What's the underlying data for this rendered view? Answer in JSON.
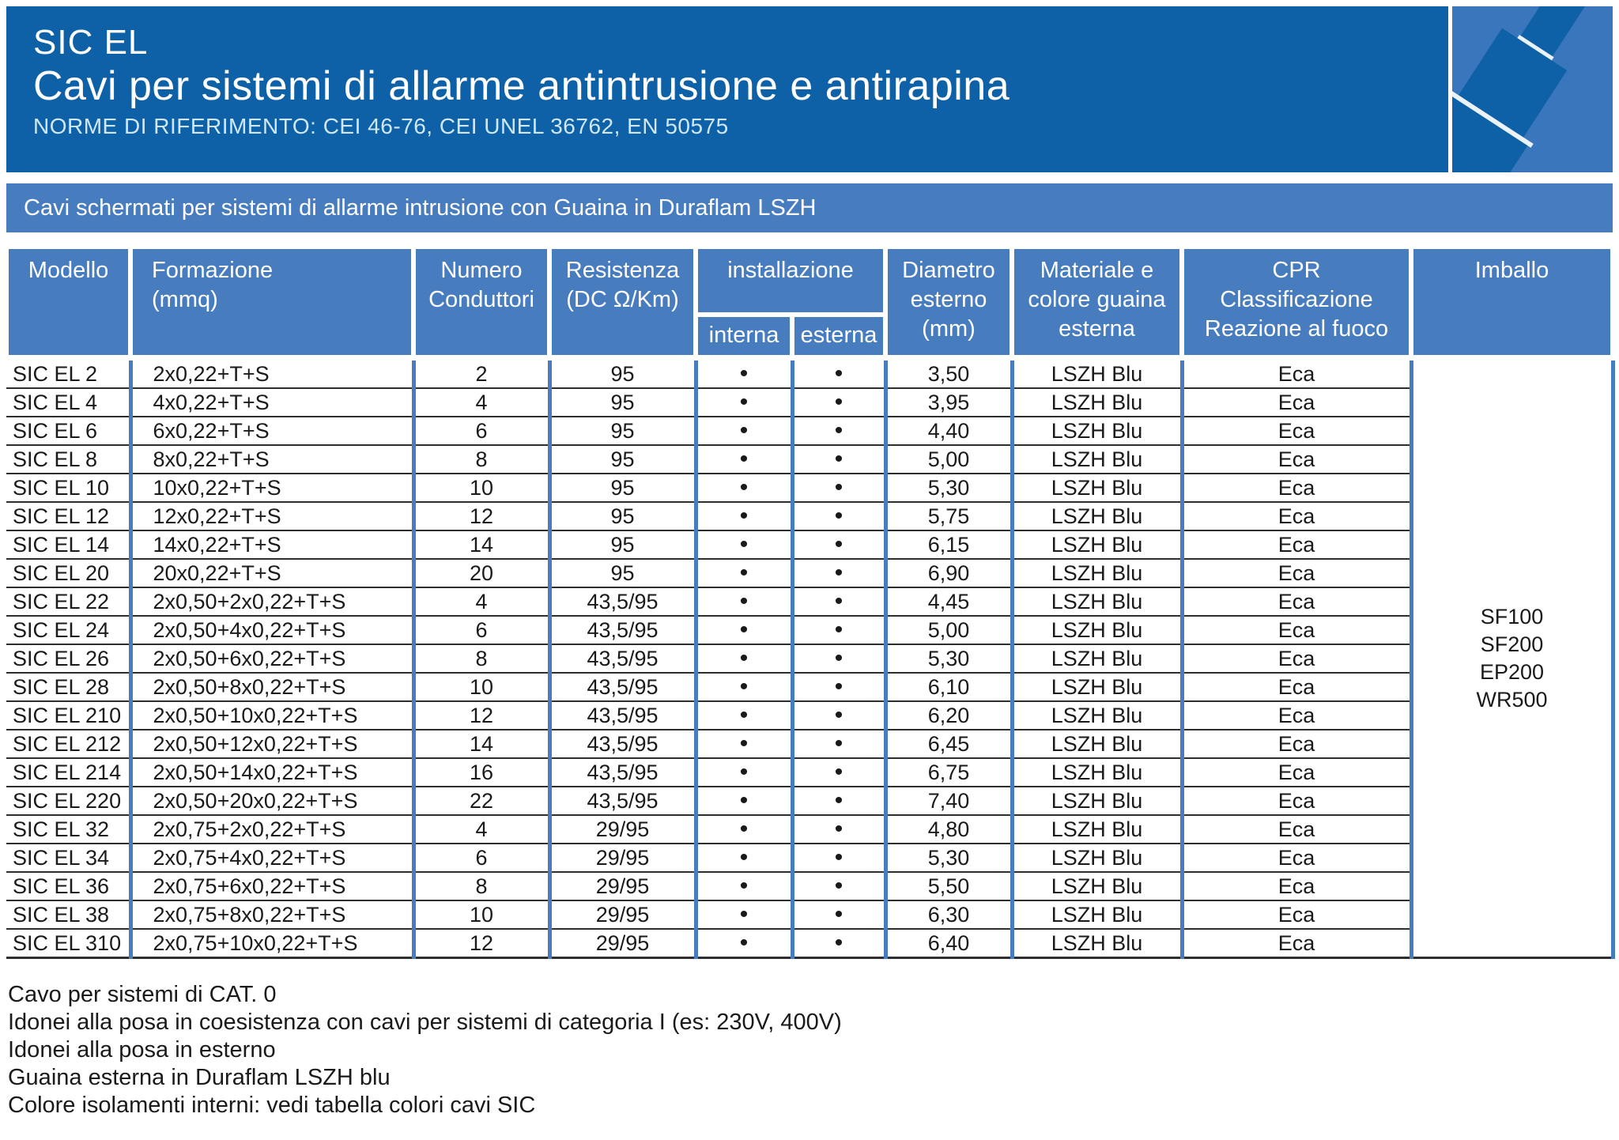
{
  "header": {
    "title": "SIC EL",
    "subtitle": "Cavi per sistemi di allarme antintrusione e antirapina",
    "norms": "NORME DI RIFERIMENTO: CEI 46-76, CEI UNEL 36762, EN 50575"
  },
  "banner": {
    "text": "Cavi schermati per sistemi di allarme intrusione con Guaina in Duraflam LSZH"
  },
  "colors": {
    "dark_blue": "#0e61a6",
    "medium_blue": "#477cbf",
    "panel_blue": "#3a76bb",
    "norms_text": "#cfe7f6",
    "row_line": "#2e2e2e",
    "body_text": "#1a1a1a"
  },
  "icons": {
    "cable_graphic": "stylized-diagonal-cable"
  },
  "table": {
    "headers": {
      "modello": "Modello",
      "formazione": "Formazione\n(mmq)",
      "numero": "Numero\nConduttori",
      "resistenza": "Resistenza\n(DC Ω/Km)",
      "installazione": "installazione",
      "interna": "interna",
      "esterna": "esterna",
      "diametro": "Diametro\nesterno\n(mm)",
      "materiale": "Materiale e\ncolore guaina\nesterna",
      "cpr": "CPR\nClassificazione\nReazione al fuoco",
      "imballo": "Imballo"
    },
    "rows": [
      {
        "model": "SIC EL 2",
        "formation": "2x0,22+T+S",
        "conductors": "2",
        "resistance": "95",
        "internal": "•",
        "external": "•",
        "diameter": "3,50",
        "sheath": "LSZH Blu",
        "cpr": "Eca"
      },
      {
        "model": "SIC EL 4",
        "formation": "4x0,22+T+S",
        "conductors": "4",
        "resistance": "95",
        "internal": "•",
        "external": "•",
        "diameter": "3,95",
        "sheath": "LSZH Blu",
        "cpr": "Eca"
      },
      {
        "model": "SIC EL 6",
        "formation": "6x0,22+T+S",
        "conductors": "6",
        "resistance": "95",
        "internal": "•",
        "external": "•",
        "diameter": "4,40",
        "sheath": "LSZH Blu",
        "cpr": "Eca"
      },
      {
        "model": "SIC EL 8",
        "formation": "8x0,22+T+S",
        "conductors": "8",
        "resistance": "95",
        "internal": "•",
        "external": "•",
        "diameter": "5,00",
        "sheath": "LSZH Blu",
        "cpr": "Eca"
      },
      {
        "model": "SIC EL 10",
        "formation": "10x0,22+T+S",
        "conductors": "10",
        "resistance": "95",
        "internal": "•",
        "external": "•",
        "diameter": "5,30",
        "sheath": "LSZH Blu",
        "cpr": "Eca"
      },
      {
        "model": "SIC EL 12",
        "formation": "12x0,22+T+S",
        "conductors": "12",
        "resistance": "95",
        "internal": "•",
        "external": "•",
        "diameter": "5,75",
        "sheath": "LSZH Blu",
        "cpr": "Eca"
      },
      {
        "model": "SIC EL 14",
        "formation": "14x0,22+T+S",
        "conductors": "14",
        "resistance": "95",
        "internal": "•",
        "external": "•",
        "diameter": "6,15",
        "sheath": "LSZH Blu",
        "cpr": "Eca"
      },
      {
        "model": "SIC EL 20",
        "formation": "20x0,22+T+S",
        "conductors": "20",
        "resistance": "95",
        "internal": "•",
        "external": "•",
        "diameter": "6,90",
        "sheath": "LSZH Blu",
        "cpr": "Eca"
      },
      {
        "model": "SIC EL 22",
        "formation": "2x0,50+2x0,22+T+S",
        "conductors": "4",
        "resistance": "43,5/95",
        "internal": "•",
        "external": "•",
        "diameter": "4,45",
        "sheath": "LSZH Blu",
        "cpr": "Eca"
      },
      {
        "model": "SIC EL 24",
        "formation": "2x0,50+4x0,22+T+S",
        "conductors": "6",
        "resistance": "43,5/95",
        "internal": "•",
        "external": "•",
        "diameter": "5,00",
        "sheath": "LSZH Blu",
        "cpr": "Eca"
      },
      {
        "model": "SIC EL 26",
        "formation": "2x0,50+6x0,22+T+S",
        "conductors": "8",
        "resistance": "43,5/95",
        "internal": "•",
        "external": "•",
        "diameter": "5,30",
        "sheath": "LSZH Blu",
        "cpr": "Eca"
      },
      {
        "model": "SIC EL 28",
        "formation": "2x0,50+8x0,22+T+S",
        "conductors": "10",
        "resistance": "43,5/95",
        "internal": "•",
        "external": "•",
        "diameter": "6,10",
        "sheath": "LSZH Blu",
        "cpr": "Eca"
      },
      {
        "model": "SIC EL 210",
        "formation": "2x0,50+10x0,22+T+S",
        "conductors": "12",
        "resistance": "43,5/95",
        "internal": "•",
        "external": "•",
        "diameter": "6,20",
        "sheath": "LSZH Blu",
        "cpr": "Eca"
      },
      {
        "model": "SIC EL 212",
        "formation": "2x0,50+12x0,22+T+S",
        "conductors": "14",
        "resistance": "43,5/95",
        "internal": "•",
        "external": "•",
        "diameter": "6,45",
        "sheath": "LSZH Blu",
        "cpr": "Eca"
      },
      {
        "model": "SIC EL 214",
        "formation": "2x0,50+14x0,22+T+S",
        "conductors": "16",
        "resistance": "43,5/95",
        "internal": "•",
        "external": "•",
        "diameter": "6,75",
        "sheath": "LSZH Blu",
        "cpr": "Eca"
      },
      {
        "model": "SIC EL 220",
        "formation": "2x0,50+20x0,22+T+S",
        "conductors": "22",
        "resistance": "43,5/95",
        "internal": "•",
        "external": "•",
        "diameter": "7,40",
        "sheath": "LSZH Blu",
        "cpr": "Eca"
      },
      {
        "model": "SIC EL 32",
        "formation": "2x0,75+2x0,22+T+S",
        "conductors": "4",
        "resistance": "29/95",
        "internal": "•",
        "external": "•",
        "diameter": "4,80",
        "sheath": "LSZH Blu",
        "cpr": "Eca"
      },
      {
        "model": "SIC EL 34",
        "formation": "2x0,75+4x0,22+T+S",
        "conductors": "6",
        "resistance": "29/95",
        "internal": "•",
        "external": "•",
        "diameter": "5,30",
        "sheath": "LSZH Blu",
        "cpr": "Eca"
      },
      {
        "model": "SIC EL 36",
        "formation": "2x0,75+6x0,22+T+S",
        "conductors": "8",
        "resistance": "29/95",
        "internal": "•",
        "external": "•",
        "diameter": "5,50",
        "sheath": "LSZH Blu",
        "cpr": "Eca"
      },
      {
        "model": "SIC EL 38",
        "formation": "2x0,75+8x0,22+T+S",
        "conductors": "10",
        "resistance": "29/95",
        "internal": "•",
        "external": "•",
        "diameter": "6,30",
        "sheath": "LSZH Blu",
        "cpr": "Eca"
      },
      {
        "model": "SIC EL 310",
        "formation": "2x0,75+10x0,22+T+S",
        "conductors": "12",
        "resistance": "29/95",
        "internal": "•",
        "external": "•",
        "diameter": "6,40",
        "sheath": "LSZH Blu",
        "cpr": "Eca"
      }
    ],
    "imballo": [
      "SF100",
      "SF200",
      "EP200",
      "WR500"
    ]
  },
  "notes": [
    "Cavo per sistemi di CAT. 0",
    "Idonei alla posa in coesistenza con cavi per sistemi di categoria I (es: 230V, 400V)",
    "Idonei alla posa in esterno",
    "Guaina esterna in Duraflam LSZH blu",
    "Colore isolamenti interni: vedi tabella colori cavi SIC"
  ]
}
